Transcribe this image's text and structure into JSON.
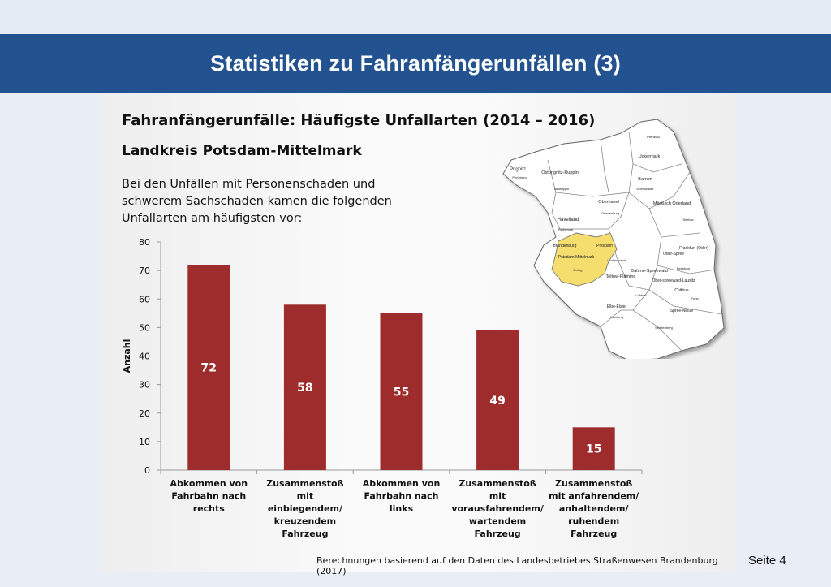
{
  "header": {
    "title": "Statistiken zu Fahranfängerunfällen (3)"
  },
  "slide": {
    "heading": "Fahranfängerunfälle: Häufigste Unfallarten (2014 – 2016)",
    "subheading": "Landkreis Potsdam-Mittelmark",
    "intro": "Bei den Unfällen mit Personenschaden und schwerem Sachschaden kamen die folgenden Unfallarten am häufigsten vor:",
    "source": "Berechnungen basierend auf den Daten des Landesbetriebes Straßenwesen Brandenburg (2017)"
  },
  "footer": {
    "page": "Seite 4"
  },
  "colors": {
    "header": "#22528f",
    "bar": "#9e2c2c",
    "highlight": "#f5dd6e"
  },
  "map": {
    "labels": [
      "Prignitz",
      "Perleberg",
      "Ostprignitz-Ruppin",
      "Neuruppin",
      "Oberhavel",
      "Oranienburg",
      "Uckermark",
      "Prenzlau",
      "Barnim",
      "Eberswalde",
      "Märkisch Oderland",
      "Seelow",
      "Havelland",
      "Rathenow",
      "Brandenburg",
      "Potsdam",
      "Potsdam-Mittelmark",
      "Belzig",
      "Luckenwalde",
      "Teltow-Fläming",
      "Dahme-Spreewald",
      "Lübben",
      "Frankfurt (Oder)",
      "Oder-Spree",
      "Beeskow",
      "Ober-spreewald-Lausitz",
      "Cottbus",
      "Forst",
      "Spree-Neiße",
      "Elbe-Elster",
      "Herzberg",
      "Senftenberg"
    ]
  },
  "chart_data": {
    "type": "bar",
    "categories": [
      "Abkommen von Fahrbahn nach rechts",
      "Zusammenstoß mit einbiegendem/ kreuzendem Fahrzeug",
      "Abkommen von Fahrbahn nach links",
      "Zusammenstoß mit vorausfahrendem/ wartendem Fahrzeug",
      "Zusammenstoß mit anfahrendem/ anhaltendem/ ruhendem Fahrzeug"
    ],
    "category_lines": [
      [
        "Abkommen von",
        "Fahrbahn nach",
        "rechts"
      ],
      [
        "Zusammenstoß",
        "mit",
        "einbiegendem/",
        "kreuzendem",
        "Fahrzeug"
      ],
      [
        "Abkommen von",
        "Fahrbahn nach",
        "links"
      ],
      [
        "Zusammenstoß",
        "mit",
        "vorausfahrendem/",
        "wartendem",
        "Fahrzeug"
      ],
      [
        "Zusammenstoß",
        "mit anfahrendem/",
        "anhaltendem/",
        "ruhendem",
        "Fahrzeug"
      ]
    ],
    "values": [
      72,
      58,
      55,
      49,
      15
    ],
    "ylabel": "Anzahl",
    "ylim": [
      0,
      80
    ],
    "yticks": [
      0,
      10,
      20,
      30,
      40,
      50,
      60,
      70,
      80
    ],
    "grid": false,
    "legend": "none"
  }
}
